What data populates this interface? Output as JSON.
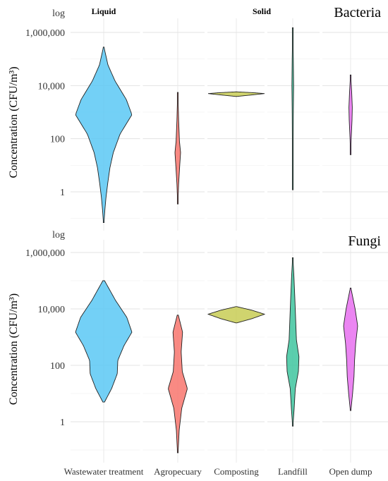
{
  "chart_data": [
    {
      "type": "violin",
      "panel_label": "Bacteria",
      "log_label": "log",
      "ylabel": "Concentration (CFU/m³)",
      "y_scale": "log10",
      "ylim": [
        0.05,
        2000000
      ],
      "yticks": [
        1,
        100,
        10000,
        1000000
      ],
      "ytick_labels": [
        "1",
        "100",
        "10,000",
        "1,000,000"
      ],
      "groups": [
        {
          "label": "Liquid",
          "categories": [
            "Wastewater treatment"
          ]
        },
        {
          "label": "Solid",
          "categories": [
            "Agropecuary",
            "Composting",
            "Landfill",
            "Open dump"
          ]
        }
      ],
      "grid": true,
      "series": [
        {
          "category": "Wastewater treatment",
          "color": "#5BC8F5",
          "min": 0.07,
          "max": 280000,
          "profile": [
            [
              0.07,
              0.01
            ],
            [
              0.2,
              0.04
            ],
            [
              0.6,
              0.08
            ],
            [
              2,
              0.14
            ],
            [
              8,
              0.22
            ],
            [
              30,
              0.34
            ],
            [
              150,
              0.58
            ],
            [
              800,
              1.0
            ],
            [
              3000,
              0.8
            ],
            [
              15000,
              0.4
            ],
            [
              60000,
              0.15
            ],
            [
              280000,
              0.01
            ]
          ]
        },
        {
          "category": "Agropecuary",
          "color": "#F8766D",
          "min": 0.35,
          "max": 5500,
          "profile": [
            [
              0.35,
              0.004
            ],
            [
              2,
              0.03
            ],
            [
              10,
              0.07
            ],
            [
              30,
              0.1
            ],
            [
              80,
              0.06
            ],
            [
              500,
              0.03
            ],
            [
              5500,
              0.004
            ]
          ]
        },
        {
          "category": "Composting",
          "color": "#C8CC55",
          "min": 3900,
          "max": 5800,
          "profile": [
            [
              3900,
              0.02
            ],
            [
              4500,
              0.6
            ],
            [
              5000,
              1.0
            ],
            [
              5400,
              0.6
            ],
            [
              5800,
              0.02
            ]
          ]
        },
        {
          "category": "Landfill",
          "color": "#3EC69F",
          "min": 1.2,
          "max": 1500000,
          "profile": [
            [
              1.2,
              0.002
            ],
            [
              10,
              0.01
            ],
            [
              100,
              0.015
            ],
            [
              1000,
              0.02
            ],
            [
              10000,
              0.03
            ],
            [
              100000,
              0.02
            ],
            [
              1500000,
              0.002
            ]
          ]
        },
        {
          "category": "Open dump",
          "color": "#E870F0",
          "min": 25,
          "max": 25000,
          "profile": [
            [
              25,
              0.004
            ],
            [
              100,
              0.02
            ],
            [
              500,
              0.05
            ],
            [
              1500,
              0.06
            ],
            [
              5000,
              0.04
            ],
            [
              25000,
              0.004
            ]
          ]
        }
      ]
    },
    {
      "type": "violin",
      "panel_label": "Fungi",
      "log_label": "log",
      "ylabel": "Concentration (CFU/m³)",
      "y_scale": "log10",
      "ylim": [
        0.05,
        2000000
      ],
      "yticks": [
        1,
        100,
        10000,
        1000000
      ],
      "ytick_labels": [
        "1",
        "100",
        "10,000",
        "1,000,000"
      ],
      "grid": true,
      "series": [
        {
          "category": "Wastewater treatment",
          "color": "#5BC8F5",
          "min": 5,
          "max": 100000,
          "profile": [
            [
              5,
              0.03
            ],
            [
              15,
              0.28
            ],
            [
              50,
              0.48
            ],
            [
              150,
              0.5
            ],
            [
              500,
              0.72
            ],
            [
              1500,
              1.0
            ],
            [
              5000,
              0.82
            ],
            [
              20000,
              0.42
            ],
            [
              100000,
              0.03
            ]
          ]
        },
        {
          "category": "Agropecuary",
          "color": "#F8766D",
          "min": 0.08,
          "max": 6000,
          "profile": [
            [
              0.08,
              0.01
            ],
            [
              0.5,
              0.05
            ],
            [
              3,
              0.14
            ],
            [
              15,
              0.34
            ],
            [
              60,
              0.16
            ],
            [
              300,
              0.12
            ],
            [
              1500,
              0.17
            ],
            [
              6000,
              0.02
            ]
          ]
        },
        {
          "category": "Composting",
          "color": "#C8CC55",
          "min": 3200,
          "max": 12000,
          "profile": [
            [
              3200,
              0.02
            ],
            [
              4500,
              0.55
            ],
            [
              6500,
              1.0
            ],
            [
              9000,
              0.55
            ],
            [
              12000,
              0.02
            ]
          ]
        },
        {
          "category": "Landfill",
          "color": "#3EC69F",
          "min": 0.7,
          "max": 650000,
          "profile": [
            [
              0.7,
              0.005
            ],
            [
              3,
              0.05
            ],
            [
              15,
              0.09
            ],
            [
              60,
              0.2
            ],
            [
              200,
              0.22
            ],
            [
              800,
              0.13
            ],
            [
              5000,
              0.1
            ],
            [
              30000,
              0.07
            ],
            [
              150000,
              0.04
            ],
            [
              650000,
              0.005
            ]
          ]
        },
        {
          "category": "Open dump",
          "color": "#E870F0",
          "min": 2.5,
          "max": 55000,
          "profile": [
            [
              2.5,
              0.01
            ],
            [
              10,
              0.07
            ],
            [
              40,
              0.12
            ],
            [
              150,
              0.14
            ],
            [
              600,
              0.18
            ],
            [
              2500,
              0.25
            ],
            [
              10000,
              0.16
            ],
            [
              55000,
              0.01
            ]
          ]
        }
      ]
    }
  ]
}
